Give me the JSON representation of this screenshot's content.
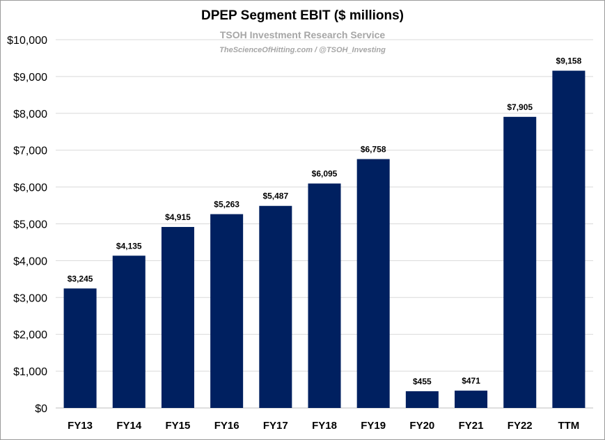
{
  "chart_data": {
    "type": "bar",
    "title": "DPEP Segment EBIT ($ millions)",
    "subtitle": "TSOH Investment Research Service",
    "subtitle2": "TheScienceOfHitting.com / @TSOH_Investing",
    "categories": [
      "FY13",
      "FY14",
      "FY15",
      "FY16",
      "FY17",
      "FY18",
      "FY19",
      "FY20",
      "FY21",
      "FY22",
      "TTM"
    ],
    "values": [
      3245,
      4135,
      4915,
      5263,
      5487,
      6095,
      6758,
      455,
      471,
      7905,
      9158
    ],
    "data_labels": [
      "$3,245",
      "$4,135",
      "$4,915",
      "$5,263",
      "$5,487",
      "$6,095",
      "$6,758",
      "$455",
      "$471",
      "$7,905",
      "$9,158"
    ],
    "y_ticks": [
      0,
      1000,
      2000,
      3000,
      4000,
      5000,
      6000,
      7000,
      8000,
      9000,
      10000
    ],
    "y_tick_labels": [
      "$0",
      "$1,000",
      "$2,000",
      "$3,000",
      "$4,000",
      "$5,000",
      "$6,000",
      "$7,000",
      "$8,000",
      "$9,000",
      "$10,000"
    ],
    "ylim": [
      0,
      10000
    ],
    "xlabel": "",
    "ylabel": "",
    "grid": true,
    "bar_color": "#002060",
    "grid_color": "#d9d9d9"
  }
}
